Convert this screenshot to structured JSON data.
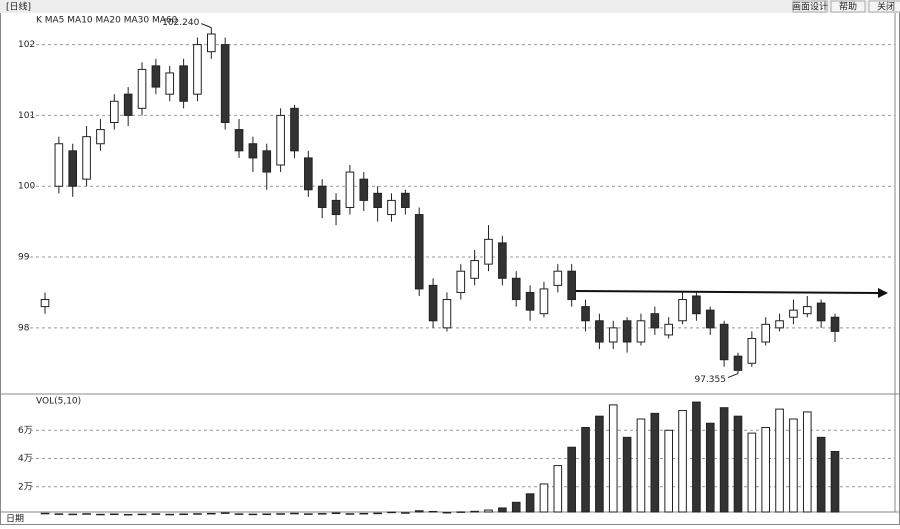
{
  "chart_data": {
    "type": "candlestick",
    "title": "[日线]",
    "legend_text": "K MA5 MA10 MA20 MA30 MA60",
    "buttons": [
      "画面设计",
      "帮助",
      "关闭"
    ],
    "open": [
      98.3,
      100.0,
      100.5,
      100.1,
      100.6,
      100.9,
      101.3,
      101.1,
      101.7,
      101.3,
      101.7,
      101.3,
      101.9,
      102.0,
      100.8,
      100.6,
      100.5,
      100.3,
      101.1,
      100.4,
      100.0,
      99.8,
      99.7,
      100.1,
      99.9,
      99.6,
      99.9,
      99.6,
      98.6,
      98.0,
      98.5,
      98.7,
      98.9,
      99.2,
      98.7,
      98.5,
      98.2,
      98.6,
      98.8,
      98.3,
      98.1,
      97.8,
      98.1,
      97.8,
      98.2,
      97.9,
      98.1,
      98.45,
      98.25,
      98.05,
      97.6,
      97.5,
      97.8,
      98.0,
      98.15,
      98.2,
      98.35,
      98.15
    ],
    "high": [
      98.5,
      100.7,
      100.6,
      100.85,
      100.95,
      101.3,
      101.4,
      101.75,
      101.8,
      101.7,
      101.8,
      102.1,
      102.24,
      102.1,
      100.95,
      100.7,
      100.6,
      101.1,
      101.15,
      100.5,
      100.1,
      99.9,
      100.3,
      100.2,
      100.0,
      99.9,
      99.95,
      99.7,
      98.7,
      98.5,
      98.9,
      99.1,
      99.45,
      99.3,
      98.8,
      98.6,
      98.65,
      98.9,
      98.9,
      98.4,
      98.2,
      98.1,
      98.15,
      98.2,
      98.3,
      98.15,
      98.5,
      98.5,
      98.3,
      98.1,
      97.65,
      97.95,
      98.15,
      98.2,
      98.4,
      98.45,
      98.4,
      98.2
    ],
    "low": [
      98.2,
      99.9,
      99.85,
      100.0,
      100.5,
      100.8,
      100.85,
      101.0,
      101.3,
      101.2,
      101.1,
      101.2,
      101.8,
      100.8,
      100.4,
      100.2,
      99.95,
      100.2,
      100.4,
      99.85,
      99.55,
      99.45,
      99.6,
      99.65,
      99.5,
      99.5,
      99.6,
      98.45,
      98.0,
      97.95,
      98.4,
      98.6,
      98.8,
      98.6,
      98.3,
      98.1,
      98.15,
      98.5,
      98.3,
      97.95,
      97.7,
      97.7,
      97.65,
      97.75,
      97.9,
      97.85,
      98.05,
      98.1,
      97.9,
      97.45,
      97.355,
      97.45,
      97.75,
      97.95,
      98.05,
      98.15,
      98.0,
      97.8
    ],
    "close": [
      98.4,
      100.6,
      100.0,
      100.7,
      100.8,
      101.2,
      101.0,
      101.65,
      101.4,
      101.6,
      101.2,
      102.0,
      102.15,
      100.9,
      100.5,
      100.4,
      100.2,
      101.0,
      100.5,
      99.95,
      99.7,
      99.6,
      100.2,
      99.8,
      99.7,
      99.8,
      99.7,
      98.55,
      98.1,
      98.4,
      98.8,
      98.95,
      99.25,
      98.7,
      98.4,
      98.25,
      98.55,
      98.8,
      98.4,
      98.1,
      97.8,
      98.0,
      97.8,
      98.1,
      98.0,
      98.05,
      98.4,
      98.2,
      98.0,
      97.55,
      97.4,
      97.85,
      98.05,
      98.1,
      98.25,
      98.3,
      98.1,
      97.95
    ],
    "annotations": [
      {
        "value": 102.24,
        "label": "102.240"
      },
      {
        "value": 97.355,
        "label": "97.355"
      }
    ],
    "ylim": [
      97.08,
      102.39
    ],
    "yticks": [
      98,
      99,
      100,
      101,
      102
    ],
    "volume": {
      "legend_text": "VOL(5,10)",
      "values": [
        1200,
        800,
        600,
        900,
        500,
        700,
        400,
        600,
        800,
        500,
        700,
        900,
        1100,
        1500,
        800,
        600,
        700,
        900,
        1200,
        800,
        1000,
        1400,
        900,
        1100,
        1300,
        2000,
        1600,
        3000,
        2500,
        1800,
        2200,
        2600,
        3500,
        5000,
        9000,
        15000,
        22000,
        35000,
        48000,
        62000,
        70000,
        78000,
        55000,
        68000,
        72000,
        60000,
        74000,
        80000,
        65000,
        76000,
        70000,
        58000,
        62000,
        75000,
        68000,
        73000,
        55000,
        45000
      ],
      "ylim": [
        0,
        85000
      ],
      "yticks": [
        {
          "value": 20000,
          "label": "2万"
        },
        {
          "value": 40000,
          "label": "4万"
        },
        {
          "value": 60000,
          "label": "6万"
        }
      ]
    },
    "footer": "日期"
  }
}
